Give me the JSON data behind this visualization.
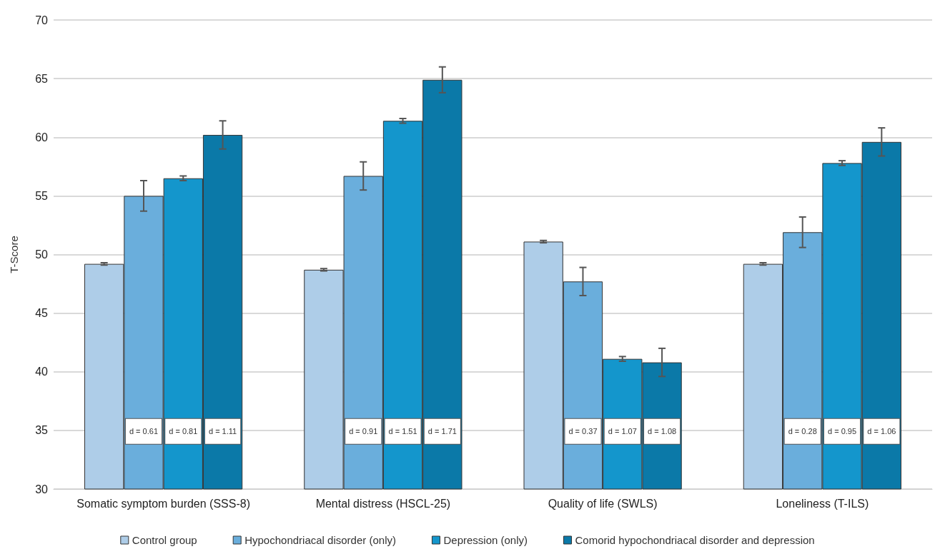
{
  "chart_data": {
    "type": "bar",
    "ylabel": "T-Score",
    "categories": [
      "Somatic symptom burden (SSS-8)",
      "Mental distress (HSCL-25)",
      "Quality of life (SWLS)",
      "Loneliness (T-ILS)"
    ],
    "series": [
      {
        "name": "Control group",
        "color": "#aecde8",
        "values": [
          49.2,
          48.7,
          51.1,
          49.2
        ],
        "errors": [
          0.1,
          0.1,
          0.1,
          0.1
        ]
      },
      {
        "name": "Hypochondriacal disorder (only)",
        "color": "#6aaedc",
        "values": [
          55.0,
          56.7,
          47.7,
          51.9
        ],
        "errors": [
          1.3,
          1.2,
          1.2,
          1.3
        ]
      },
      {
        "name": "Depression (only)",
        "color": "#1496cc",
        "values": [
          56.5,
          61.4,
          41.1,
          57.8
        ],
        "errors": [
          0.2,
          0.2,
          0.2,
          0.2
        ]
      },
      {
        "name": "Comorid hypochondriacal disorder and depression",
        "color": "#0b79a8",
        "values": [
          60.2,
          64.9,
          40.8,
          59.6
        ],
        "errors": [
          1.2,
          1.1,
          1.2,
          1.2
        ]
      }
    ],
    "annotations": [
      "d = 0.61",
      "d = 0.81",
      "d = 1.11",
      "d = 0.91",
      "d = 1.51",
      "d = 1.71",
      "d = 0.37",
      "d = 1.07",
      "d = 1.08",
      "d = 0.28",
      "d = 0.95",
      "d = 1.06"
    ],
    "ylim": [
      30,
      70
    ],
    "yticks": [
      30,
      35,
      40,
      45,
      50,
      55,
      60,
      65,
      70
    ],
    "grid": "y",
    "legend": "bottom"
  }
}
